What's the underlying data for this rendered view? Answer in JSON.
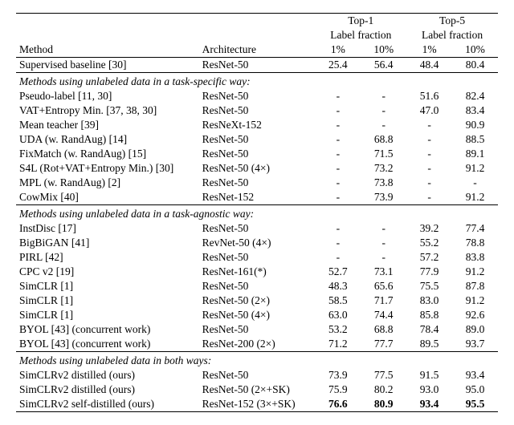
{
  "header": {
    "method": "Method",
    "architecture": "Architecture",
    "top1": "Top-1",
    "top5": "Top-5",
    "labelfrac": "Label fraction",
    "p1": "1%",
    "p10": "10%"
  },
  "baseline": {
    "method": "Supervised baseline [30]",
    "arch": "ResNet-50",
    "t1_1": "25.4",
    "t1_10": "56.4",
    "t5_1": "48.4",
    "t5_10": "80.4"
  },
  "sec1": {
    "title": "Methods using unlabeled data in a task-specific way:",
    "rows": [
      {
        "method": "Pseudo-label [11, 30]",
        "arch": "ResNet-50",
        "t1_1": "-",
        "t1_10": "-",
        "t5_1": "51.6",
        "t5_10": "82.4"
      },
      {
        "method": "VAT+Entropy Min. [37, 38, 30]",
        "arch": "ResNet-50",
        "t1_1": "-",
        "t1_10": "-",
        "t5_1": "47.0",
        "t5_10": "83.4"
      },
      {
        "method": "Mean teacher [39]",
        "arch": "ResNeXt-152",
        "t1_1": "-",
        "t1_10": "-",
        "t5_1": "-",
        "t5_10": "90.9"
      },
      {
        "method": "UDA (w. RandAug) [14]",
        "arch": "ResNet-50",
        "t1_1": "-",
        "t1_10": "68.8",
        "t5_1": "-",
        "t5_10": "88.5"
      },
      {
        "method": "FixMatch (w. RandAug) [15]",
        "arch": "ResNet-50",
        "t1_1": "-",
        "t1_10": "71.5",
        "t5_1": "-",
        "t5_10": "89.1"
      },
      {
        "method": "S4L (Rot+VAT+Entropy Min.) [30]",
        "arch": "ResNet-50 (4×)",
        "t1_1": "-",
        "t1_10": "73.2",
        "t5_1": "-",
        "t5_10": "91.2"
      },
      {
        "method": "MPL (w. RandAug) [2]",
        "arch": "ResNet-50",
        "t1_1": "-",
        "t1_10": "73.8",
        "t5_1": "-",
        "t5_10": "-"
      },
      {
        "method": "CowMix [40]",
        "arch": "ResNet-152",
        "t1_1": "-",
        "t1_10": "73.9",
        "t5_1": "-",
        "t5_10": "91.2"
      }
    ]
  },
  "sec2": {
    "title": "Methods using unlabeled data in a task-agnostic way:",
    "rows": [
      {
        "method": "InstDisc [17]",
        "arch": "ResNet-50",
        "t1_1": "-",
        "t1_10": "-",
        "t5_1": "39.2",
        "t5_10": "77.4"
      },
      {
        "method": "BigBiGAN [41]",
        "arch": "RevNet-50 (4×)",
        "t1_1": "-",
        "t1_10": "-",
        "t5_1": "55.2",
        "t5_10": "78.8"
      },
      {
        "method": "PIRL [42]",
        "arch": "ResNet-50",
        "t1_1": "-",
        "t1_10": "-",
        "t5_1": "57.2",
        "t5_10": "83.8"
      },
      {
        "method": "CPC v2 [19]",
        "arch": "ResNet-161(*)",
        "t1_1": "52.7",
        "t1_10": "73.1",
        "t5_1": "77.9",
        "t5_10": "91.2"
      },
      {
        "method": "SimCLR [1]",
        "arch": "ResNet-50",
        "t1_1": "48.3",
        "t1_10": "65.6",
        "t5_1": "75.5",
        "t5_10": "87.8"
      },
      {
        "method": "SimCLR [1]",
        "arch": "ResNet-50 (2×)",
        "t1_1": "58.5",
        "t1_10": "71.7",
        "t5_1": "83.0",
        "t5_10": "91.2"
      },
      {
        "method": "SimCLR [1]",
        "arch": "ResNet-50 (4×)",
        "t1_1": "63.0",
        "t1_10": "74.4",
        "t5_1": "85.8",
        "t5_10": "92.6"
      },
      {
        "method": "BYOL [43] (concurrent work)",
        "arch": "ResNet-50",
        "t1_1": "53.2",
        "t1_10": "68.8",
        "t5_1": "78.4",
        "t5_10": "89.0"
      },
      {
        "method": "BYOL [43] (concurrent work)",
        "arch": "ResNet-200 (2×)",
        "t1_1": "71.2",
        "t1_10": "77.7",
        "t5_1": "89.5",
        "t5_10": "93.7"
      }
    ]
  },
  "sec3": {
    "title": "Methods using unlabeled data in both ways:",
    "rows": [
      {
        "method": "SimCLRv2 distilled (ours)",
        "arch": "ResNet-50",
        "t1_1": "73.9",
        "t1_10": "77.5",
        "t5_1": "91.5",
        "t5_10": "93.4",
        "bold": false
      },
      {
        "method": "SimCLRv2 distilled (ours)",
        "arch": "ResNet-50 (2×+SK)",
        "t1_1": "75.9",
        "t1_10": "80.2",
        "t5_1": "93.0",
        "t5_10": "95.0",
        "bold": false
      },
      {
        "method": "SimCLRv2 self-distilled (ours)",
        "arch": "ResNet-152 (3×+SK)",
        "t1_1": "76.6",
        "t1_10": "80.9",
        "t5_1": "93.4",
        "t5_10": "95.5",
        "bold": true
      }
    ]
  }
}
